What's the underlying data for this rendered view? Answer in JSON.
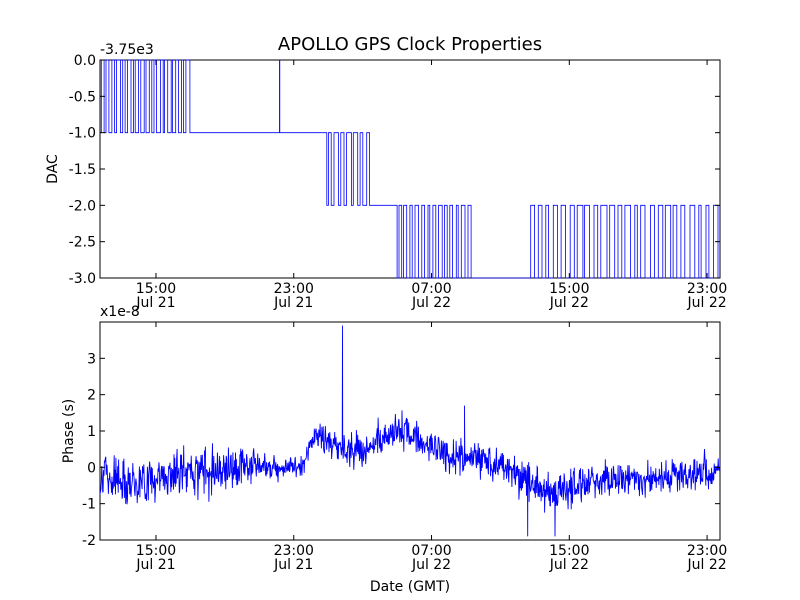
{
  "title": "APOLLO GPS Clock Properties",
  "xlabel": "Date (GMT)",
  "colors": {
    "line": "#0000ff",
    "axes": "#000000",
    "background": "#ffffff"
  },
  "xticks": [
    {
      "time": "15:00",
      "date": "Jul 21"
    },
    {
      "time": "23:00",
      "date": "Jul 21"
    },
    {
      "time": "07:00",
      "date": "Jul 22"
    },
    {
      "time": "15:00",
      "date": "Jul 22"
    },
    {
      "time": "23:00",
      "date": "Jul 22"
    }
  ],
  "chart_data": [
    {
      "type": "line",
      "ylabel": "DAC",
      "offset_label": "-3.75e3",
      "xlim": [
        "2013-07-21T11:45",
        "2013-07-22T23:45"
      ],
      "ylim": [
        -3.0,
        0.0
      ],
      "yticks": [
        "0.0",
        "-0.5",
        "-1.0",
        "-1.5",
        "-2.0",
        "-2.5",
        "-3.0"
      ],
      "grid": false,
      "series": [
        {
          "values_note": "",
          "segments": [
            {
              "from": "2013-07-21T11:45",
              "to": "2013-07-21T17:00",
              "low": -1.0,
              "high": 0.0,
              "transitions": 34
            },
            {
              "from": "2013-07-21T17:00",
              "to": "2013-07-21T22:10",
              "low": -1.0,
              "high": -1.0,
              "transitions": 0
            },
            {
              "from": "2013-07-21T22:10",
              "to": "2013-07-21T22:12",
              "low": -1.0,
              "high": 0.0,
              "transitions": 2
            },
            {
              "from": "2013-07-21T22:12",
              "to": "2013-07-22T00:55",
              "low": -1.0,
              "high": -1.0,
              "transitions": 0
            },
            {
              "from": "2013-07-22T00:55",
              "to": "2013-07-22T03:30",
              "low": -2.0,
              "high": -1.0,
              "transitions": 14
            },
            {
              "from": "2013-07-22T03:30",
              "to": "2013-07-22T05:00",
              "low": -2.0,
              "high": -2.0,
              "transitions": 0
            },
            {
              "from": "2013-07-22T05:00",
              "to": "2013-07-22T09:20",
              "low": -3.0,
              "high": -2.0,
              "transitions": 26
            },
            {
              "from": "2013-07-22T09:20",
              "to": "2013-07-22T12:35",
              "low": -3.0,
              "high": -3.0,
              "transitions": 0
            },
            {
              "from": "2013-07-22T12:35",
              "to": "2013-07-22T23:45",
              "low": -3.0,
              "high": -2.0,
              "transitions": 48
            }
          ]
        }
      ]
    },
    {
      "type": "line",
      "ylabel": "Phase (s)",
      "offset_label": "x1e-8",
      "xlim": [
        "2013-07-21T11:45",
        "2013-07-22T23:45"
      ],
      "ylim": [
        -2,
        4
      ],
      "yticks": [
        "3",
        "2",
        "1",
        "0",
        "-1",
        "-2"
      ],
      "grid": false,
      "series": [
        {
          "trend": [
            {
              "x": "2013-07-21T11:45",
              "y": -0.2
            },
            {
              "x": "2013-07-21T14:00",
              "y": -0.4
            },
            {
              "x": "2013-07-21T17:00",
              "y": -0.1
            },
            {
              "x": "2013-07-21T20:00",
              "y": 0.05
            },
            {
              "x": "2013-07-21T23:30",
              "y": 0.0
            },
            {
              "x": "2013-07-22T00:15",
              "y": 0.9
            },
            {
              "x": "2013-07-22T01:45",
              "y": 0.5
            },
            {
              "x": "2013-07-22T03:30",
              "y": 0.5
            },
            {
              "x": "2013-07-22T05:00",
              "y": 1.1
            },
            {
              "x": "2013-07-22T08:00",
              "y": 0.3
            },
            {
              "x": "2013-07-22T10:30",
              "y": 0.2
            },
            {
              "x": "2013-07-22T12:00",
              "y": -0.2
            },
            {
              "x": "2013-07-22T14:00",
              "y": -0.7
            },
            {
              "x": "2013-07-22T17:00",
              "y": -0.3
            },
            {
              "x": "2013-07-22T20:00",
              "y": -0.3
            },
            {
              "x": "2013-07-22T23:45",
              "y": -0.1
            }
          ],
          "spikes": [
            {
              "x": "2013-07-22T01:50",
              "y": 3.9
            },
            {
              "x": "2013-07-22T08:55",
              "y": 1.7
            },
            {
              "x": "2013-07-22T12:35",
              "y": -1.9
            },
            {
              "x": "2013-07-22T14:10",
              "y": -1.9
            }
          ]
        }
      ]
    }
  ]
}
